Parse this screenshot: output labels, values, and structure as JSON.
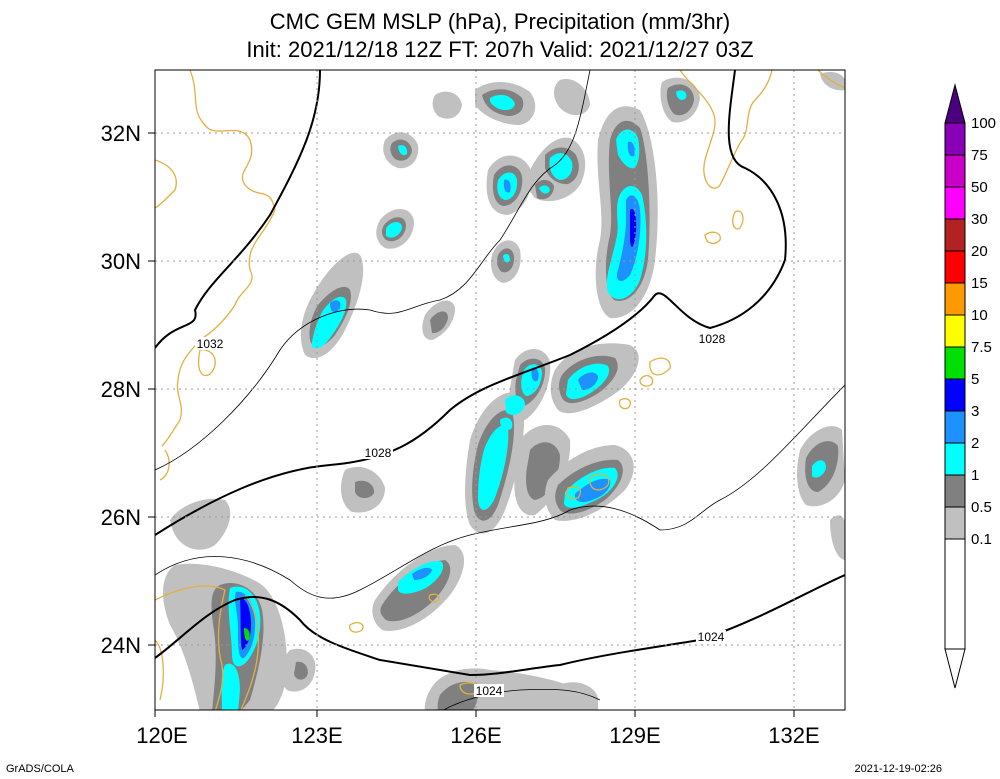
{
  "title": {
    "line1": "CMC GEM MSLP (hPa), Precipitation (mm/3hr)",
    "line2": "Init: 2021/12/18 12Z  FT: 207h  Valid: 2021/12/27 03Z"
  },
  "axes": {
    "lon_labels": [
      "120E",
      "123E",
      "126E",
      "129E",
      "132E"
    ],
    "lat_labels": [
      "32N",
      "30N",
      "28N",
      "26N",
      "24N"
    ]
  },
  "isobar_labels": [
    "1032",
    "1028",
    "1028",
    "1024",
    "1024"
  ],
  "legend": {
    "labels": [
      "100",
      "75",
      "50",
      "30",
      "20",
      "15",
      "10",
      "7.5",
      "5",
      "3",
      "2",
      "1",
      "0.5",
      "0.1"
    ],
    "colors": [
      "#4b0082",
      "#8a00b8",
      "#c800c8",
      "#ff00ff",
      "#b22222",
      "#ff0000",
      "#ff9900",
      "#ffff00",
      "#00e000",
      "#0000ff",
      "#1e90ff",
      "#00ffff",
      "#808080",
      "#c0c0c0",
      "#ffffff"
    ]
  },
  "footer": {
    "left": "GrADS/COLA",
    "right": "2021-12-19-02:26"
  }
}
